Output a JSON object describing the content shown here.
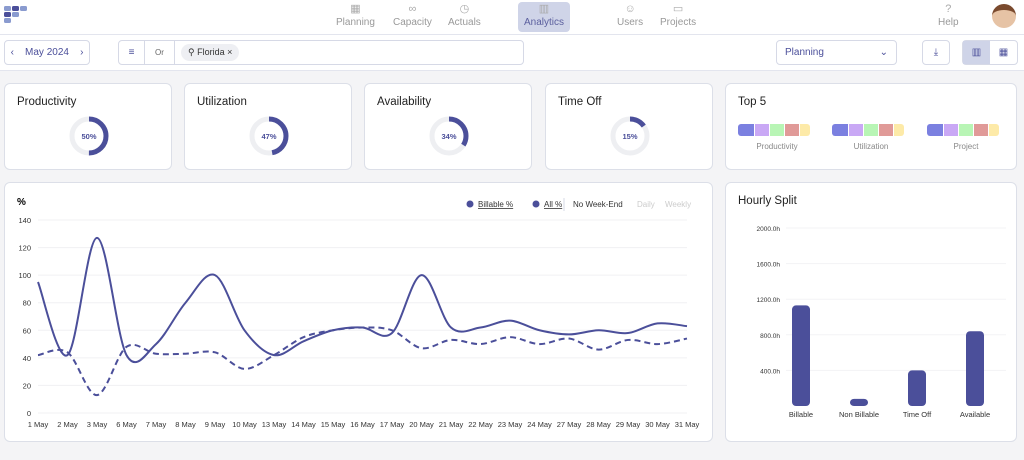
{
  "nav": {
    "items": [
      {
        "label": "Planning",
        "icon": "calendar-icon"
      },
      {
        "label": "Capacity",
        "icon": "infinity-icon"
      },
      {
        "label": "Actuals",
        "icon": "stopwatch-icon"
      },
      {
        "label": "Analytics",
        "icon": "bar-chart-icon",
        "active": true
      },
      {
        "label": "Users",
        "icon": "user-icon"
      },
      {
        "label": "Projects",
        "icon": "folder-icon"
      }
    ],
    "help": "Help"
  },
  "toolbar": {
    "month": "May 2024",
    "or": "Or",
    "filter_chip": "Florida",
    "view_select": "Planning"
  },
  "kpis": [
    {
      "title": "Productivity",
      "value": "50%",
      "fraction": 0.5
    },
    {
      "title": "Utilization",
      "value": "47%",
      "fraction": 0.47
    },
    {
      "title": "Availability",
      "value": "34%",
      "fraction": 0.34
    },
    {
      "title": "Time Off",
      "value": "15%",
      "fraction": 0.15
    }
  ],
  "top5": {
    "title": "Top 5",
    "groups": [
      "Productivity",
      "Utilization",
      "Project"
    ],
    "colors": [
      "#7b80e0",
      "#c9a8f5",
      "#b8f5b5",
      "#e09a98",
      "#fdeaa8"
    ]
  },
  "colors": {
    "accent": "#4b4f9a",
    "bg": "#f4f4f6"
  },
  "chart_data": [
    {
      "type": "line",
      "ylabel": "%",
      "ylim": [
        0,
        140
      ],
      "yticks": [
        0,
        20,
        40,
        60,
        80,
        100,
        120,
        140
      ],
      "legend": [
        "Billable %",
        "All %"
      ],
      "toggles": [
        "No Week-End",
        "Daily",
        "Weekly"
      ],
      "categories": [
        "1 May",
        "2 May",
        "3 May",
        "6 May",
        "7 May",
        "8 May",
        "9 May",
        "10 May",
        "13 May",
        "14 May",
        "15 May",
        "16 May",
        "17 May",
        "20 May",
        "21 May",
        "22 May",
        "23 May",
        "24 May",
        "27 May",
        "28 May",
        "29 May",
        "30 May",
        "31 May"
      ],
      "series": [
        {
          "name": "All %",
          "style": "solid",
          "values": [
            95,
            42,
            127,
            42,
            50,
            80,
            100,
            60,
            42,
            52,
            60,
            62,
            58,
            100,
            62,
            62,
            67,
            60,
            57,
            60,
            58,
            65,
            63
          ]
        },
        {
          "name": "Billable %",
          "style": "dashed",
          "values": [
            42,
            44,
            13,
            48,
            43,
            43,
            44,
            32,
            42,
            55,
            60,
            62,
            60,
            47,
            53,
            50,
            55,
            50,
            54,
            46,
            53,
            50,
            54
          ]
        }
      ]
    },
    {
      "type": "bar",
      "title": "Hourly Split",
      "ylim": [
        0,
        2000
      ],
      "yticks": [
        "400.0h",
        "800.0h",
        "1200.0h",
        "1600.0h",
        "2000.0h"
      ],
      "categories": [
        "Billable",
        "Non Billable",
        "Time Off",
        "Available"
      ],
      "values": [
        1130,
        80,
        400,
        840
      ]
    }
  ]
}
